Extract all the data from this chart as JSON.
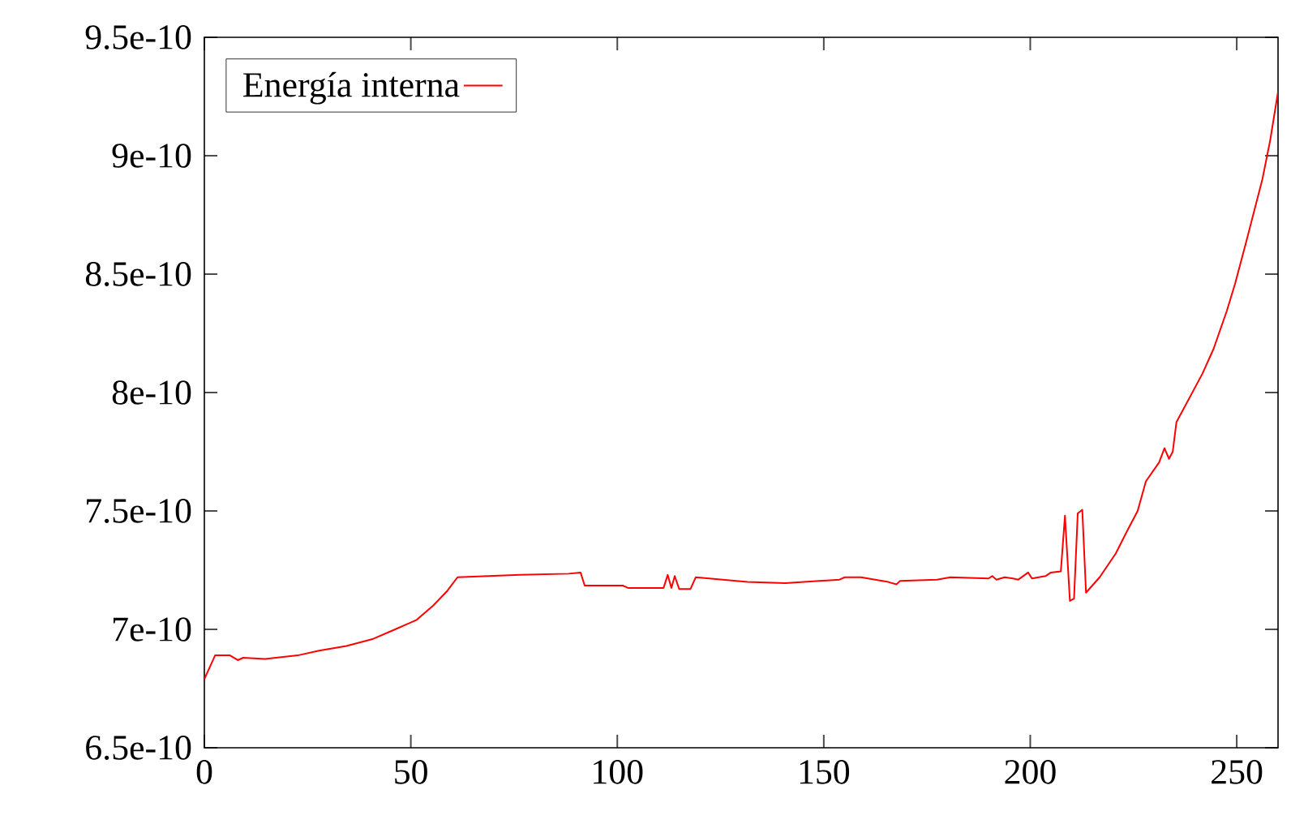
{
  "chart_data": {
    "type": "line",
    "xlim": [
      0,
      260
    ],
    "ylim": [
      6.5e-10,
      9.5e-10
    ],
    "xticks": [
      0,
      50,
      100,
      150,
      200,
      250
    ],
    "yticks": [
      {
        "value": 6.5e-10,
        "label": "6.5e-10"
      },
      {
        "value": 7e-10,
        "label": "7e-10"
      },
      {
        "value": 7.5e-10,
        "label": "7.5e-10"
      },
      {
        "value": 8e-10,
        "label": "8e-10"
      },
      {
        "value": 8.5e-10,
        "label": "8.5e-10"
      },
      {
        "value": 9e-10,
        "label": "9e-10"
      },
      {
        "value": 9.5e-10,
        "label": "9.5e-10"
      }
    ],
    "grid": false,
    "legend": "top left",
    "marker": "none",
    "line_style": "solid",
    "series": [
      {
        "name": "Energía interna",
        "color": "#ff0000",
        "x": [
          0,
          2.6,
          6.2,
          8.1,
          9.4,
          14.7,
          22.6,
          27.8,
          34.4,
          40.9,
          46.2,
          51.4,
          55.4,
          58.7,
          61.3,
          76.4,
          88.2,
          91.1,
          92.1,
          101.3,
          102.6,
          111.2,
          112.2,
          113.1,
          113.9,
          115,
          117.7,
          119,
          131.5,
          140.7,
          153.8,
          155.1,
          159,
          165.6,
          167.6,
          168.5,
          177.4,
          180.7,
          189.9,
          190.8,
          191.8,
          193.8,
          195.8,
          197.1,
          199.5,
          200.4,
          203.7,
          205,
          207.4,
          208.4,
          209.6,
          210.6,
          211.5,
          212.6,
          213.5,
          216.8,
          220.7,
          223.3,
          226,
          228,
          231.2,
          232.5,
          233.6,
          234.5,
          235.4,
          241.7,
          244.4,
          247.6,
          249.6,
          252.2,
          256.2,
          258.1,
          260
        ],
        "values": [
          6.79e-10,
          6.89e-10,
          6.89e-10,
          6.87e-10,
          6.88e-10,
          6.875e-10,
          6.89e-10,
          6.91e-10,
          6.93e-10,
          6.96e-10,
          7e-10,
          7.04e-10,
          7.1e-10,
          7.16e-10,
          7.22e-10,
          7.23e-10,
          7.235e-10,
          7.24e-10,
          7.185e-10,
          7.185e-10,
          7.175e-10,
          7.175e-10,
          7.23e-10,
          7.175e-10,
          7.225e-10,
          7.17e-10,
          7.17e-10,
          7.22e-10,
          7.2e-10,
          7.195e-10,
          7.21e-10,
          7.22e-10,
          7.22e-10,
          7.2e-10,
          7.19e-10,
          7.205e-10,
          7.21e-10,
          7.22e-10,
          7.215e-10,
          7.225e-10,
          7.21e-10,
          7.22e-10,
          7.215e-10,
          7.21e-10,
          7.24e-10,
          7.215e-10,
          7.225e-10,
          7.24e-10,
          7.245e-10,
          7.48e-10,
          7.12e-10,
          7.13e-10,
          7.49e-10,
          7.505e-10,
          7.155e-10,
          7.22e-10,
          7.32e-10,
          7.41e-10,
          7.5e-10,
          7.625e-10,
          7.705e-10,
          7.765e-10,
          7.72e-10,
          7.75e-10,
          7.875e-10,
          8.08e-10,
          8.185e-10,
          8.345e-10,
          8.46e-10,
          8.63e-10,
          8.9e-10,
          9.065e-10,
          9.27e-10
        ]
      }
    ]
  }
}
